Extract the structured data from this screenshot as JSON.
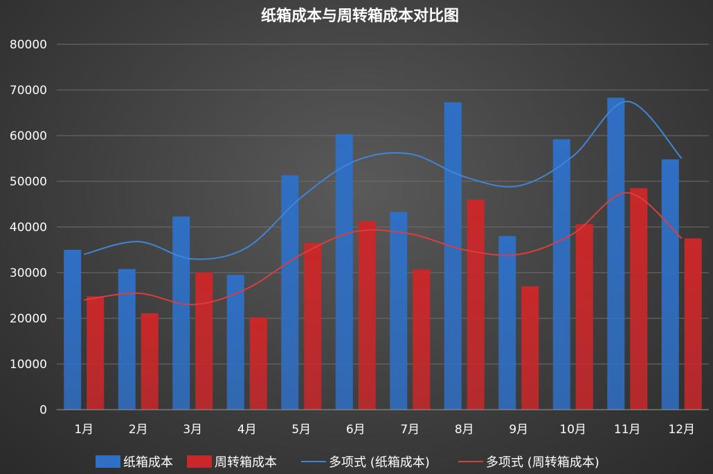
{
  "chart_data": {
    "type": "bar",
    "title": "纸箱成本与周转箱成本对比图",
    "categories": [
      "1月",
      "2月",
      "3月",
      "4月",
      "5月",
      "6月",
      "7月",
      "8月",
      "9月",
      "10月",
      "11月",
      "12月"
    ],
    "series": [
      {
        "name": "纸箱成本",
        "values": [
          35000,
          30800,
          42300,
          29500,
          51300,
          60300,
          43300,
          67300,
          38000,
          59200,
          68300,
          54800
        ],
        "color": "#2f6fc4"
      },
      {
        "name": "周转箱成本",
        "values": [
          24800,
          21100,
          30100,
          20200,
          36500,
          41300,
          30700,
          46000,
          27000,
          40600,
          48500,
          37500
        ],
        "color": "#c8282a"
      }
    ],
    "trendlines": [
      {
        "name": "多项式 (纸箱成本)",
        "color": "#3f86d6",
        "values": [
          34000,
          36800,
          33000,
          35500,
          46500,
          54500,
          56000,
          51000,
          49000,
          55500,
          67500,
          55000
        ]
      },
      {
        "name": "多项式 (周转箱成本)",
        "color": "#d84040",
        "values": [
          24000,
          25500,
          23000,
          26500,
          34000,
          39000,
          38500,
          35000,
          34000,
          38500,
          47500,
          37500
        ]
      }
    ],
    "yticks": [
      "0",
      "10000",
      "20000",
      "30000",
      "40000",
      "50000",
      "60000",
      "70000",
      "80000"
    ],
    "ylim": [
      0,
      80000
    ],
    "grid": true,
    "legend_position": "bottom"
  }
}
